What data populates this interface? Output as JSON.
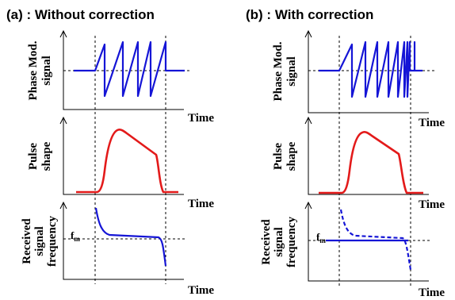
{
  "panels": [
    {
      "title": "(a) : Without correction",
      "phase_ylabel": [
        "Phase Mod.",
        "signal"
      ],
      "pulse_ylabel": [
        "Pulse",
        "shape"
      ],
      "freq_ylabel": [
        "Received",
        "signal",
        "frequency"
      ],
      "xlabel": "Time",
      "fm_main": "f",
      "fm_sub": "m"
    },
    {
      "title": "(b) : With correction",
      "phase_ylabel": [
        "Phase Mod.",
        "signal"
      ],
      "pulse_ylabel": [
        "Pulse",
        "shape"
      ],
      "freq_ylabel": [
        "Received",
        "signal",
        "frequency"
      ],
      "xlabel": "Time",
      "fm_main": "f",
      "fm_sub": "m"
    }
  ],
  "colors": {
    "phase_signal": "#1515d6",
    "pulse": "#e31a1a",
    "frequency": "#1515d6",
    "axes": "#000000"
  }
}
